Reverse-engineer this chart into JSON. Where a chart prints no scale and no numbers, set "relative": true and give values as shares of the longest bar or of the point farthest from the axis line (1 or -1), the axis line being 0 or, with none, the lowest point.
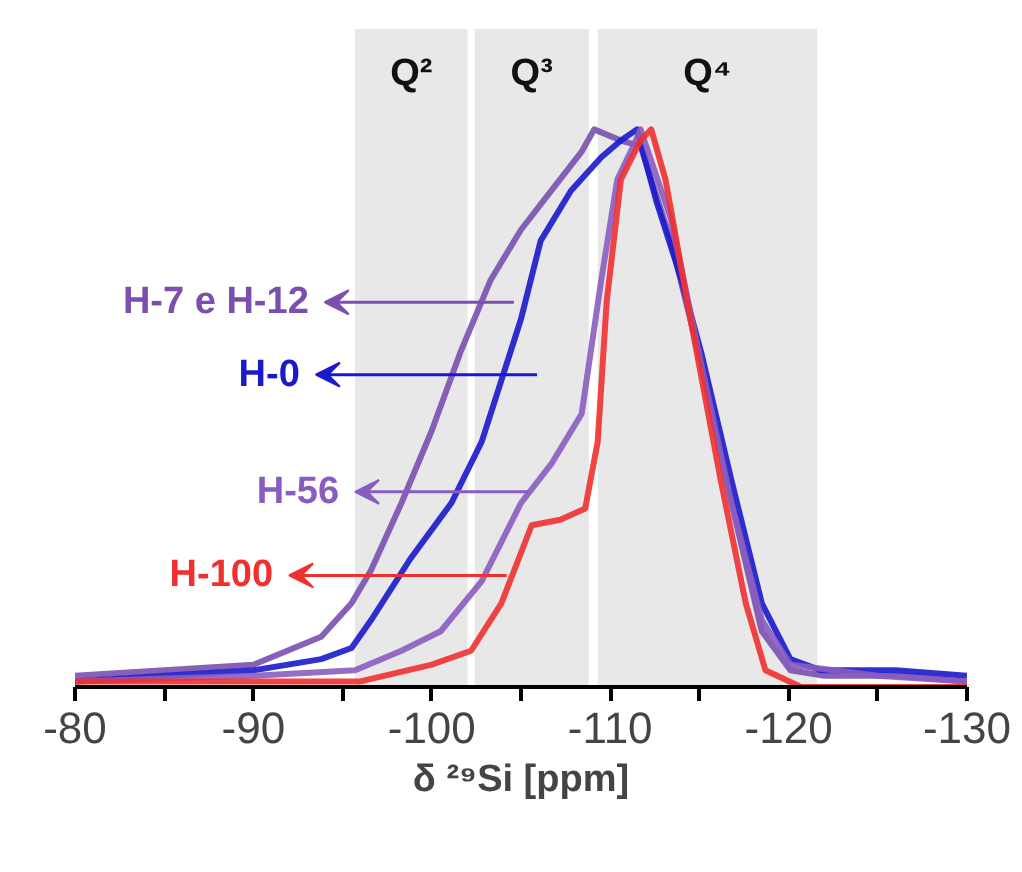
{
  "chart_data": {
    "type": "line",
    "xlabel": "δ ²⁹Si [ppm]",
    "relative": true,
    "grid": false,
    "legend": "left",
    "tick_labels": "x",
    "marker": "none",
    "line_style": "solid",
    "xlim": [
      -80,
      -130
    ],
    "xticks": [
      -80,
      {
        "value": -85,
        "label": null
      },
      -90,
      {
        "value": -95,
        "label": null
      },
      -100,
      {
        "value": -105,
        "label": null
      },
      -110,
      {
        "value": -115,
        "label": null
      },
      -120,
      {
        "value": -125,
        "label": null
      },
      -130
    ],
    "bands": [
      {
        "axis": "x",
        "from": -95.7,
        "to": -102.0,
        "label": "Q²",
        "color": "#e8e8e8"
      },
      {
        "axis": "x",
        "from": -102.4,
        "to": -108.8,
        "label": "Q³",
        "color": "#e8e8e8"
      },
      {
        "axis": "x",
        "from": -109.3,
        "to": -121.6,
        "label": "Q⁴",
        "color": "#e8e8e8"
      }
    ],
    "series": [
      {
        "name": "H-7 e H-12",
        "color": "#7a4fb0",
        "x": [
          -80,
          -85,
          -90,
          -93.8,
          -95.5,
          -96.6,
          -98.3,
          -100,
          -101.6,
          -103.3,
          -105,
          -106.7,
          -108.4,
          -109.1,
          -110.6,
          -111.7,
          -113.4,
          -115.1,
          -116.8,
          -118.5,
          -120.1,
          -122,
          -126,
          -130
        ],
        "values": [
          0.02,
          0.03,
          0.04,
          0.09,
          0.15,
          0.21,
          0.33,
          0.46,
          0.6,
          0.73,
          0.82,
          0.89,
          0.96,
          1.0,
          0.98,
          0.97,
          0.8,
          0.58,
          0.33,
          0.1,
          0.03,
          0.02,
          0.02,
          0.01
        ]
      },
      {
        "name": "H-0",
        "color": "#1a1acc",
        "x": [
          -80,
          -85,
          -90,
          -93.8,
          -95.5,
          -96.6,
          -98.8,
          -101.1,
          -102.8,
          -105,
          -106.1,
          -107.8,
          -109.5,
          -110.6,
          -111.5,
          -112.6,
          -114,
          -115.1,
          -116.8,
          -118.5,
          -120.1,
          -121.8,
          -126,
          -130
        ],
        "values": [
          0.01,
          0.02,
          0.03,
          0.05,
          0.07,
          0.12,
          0.23,
          0.33,
          0.44,
          0.66,
          0.8,
          0.89,
          0.95,
          0.98,
          1.0,
          0.87,
          0.73,
          0.6,
          0.37,
          0.15,
          0.05,
          0.03,
          0.03,
          0.02
        ]
      },
      {
        "name": "H-56",
        "color": "#8a5cc0",
        "x": [
          -80,
          -90,
          -95.7,
          -98.3,
          -100.5,
          -102.8,
          -105,
          -106.7,
          -108.4,
          -109.5,
          -110.4,
          -111.3,
          -111.7,
          -113.4,
          -115.1,
          -116.8,
          -118.5,
          -120.1,
          -125,
          -130
        ],
        "values": [
          0.01,
          0.02,
          0.03,
          0.065,
          0.1,
          0.19,
          0.33,
          0.4,
          0.49,
          0.73,
          0.91,
          0.97,
          1.0,
          0.84,
          0.58,
          0.33,
          0.12,
          0.04,
          0.02,
          0.01
        ]
      },
      {
        "name": "H-100",
        "color": "#f03030",
        "x": [
          -80,
          -90,
          -96,
          -100,
          -102.2,
          -103.9,
          -105.6,
          -107.2,
          -108.6,
          -109.3,
          -109.8,
          -110.6,
          -111.7,
          -112.3,
          -113.1,
          -114.5,
          -116.2,
          -117.6,
          -118.7,
          -120.7,
          -130
        ],
        "values": [
          0.01,
          0.01,
          0.01,
          0.04,
          0.065,
          0.15,
          0.29,
          0.3,
          0.32,
          0.44,
          0.69,
          0.91,
          0.98,
          1.0,
          0.91,
          0.66,
          0.37,
          0.15,
          0.03,
          0.0,
          0.0
        ]
      }
    ]
  }
}
